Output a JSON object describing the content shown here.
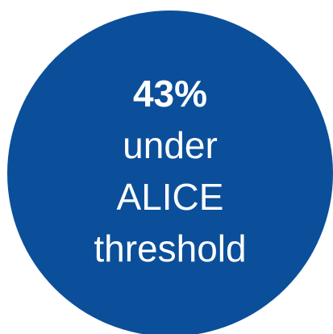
{
  "badge": {
    "percent": "43%",
    "line1": "under",
    "line2": "ALICE",
    "line3": "threshold"
  },
  "colors": {
    "circle": "#0b4f9a",
    "text": "#ffffff",
    "background": "#ffffff"
  }
}
